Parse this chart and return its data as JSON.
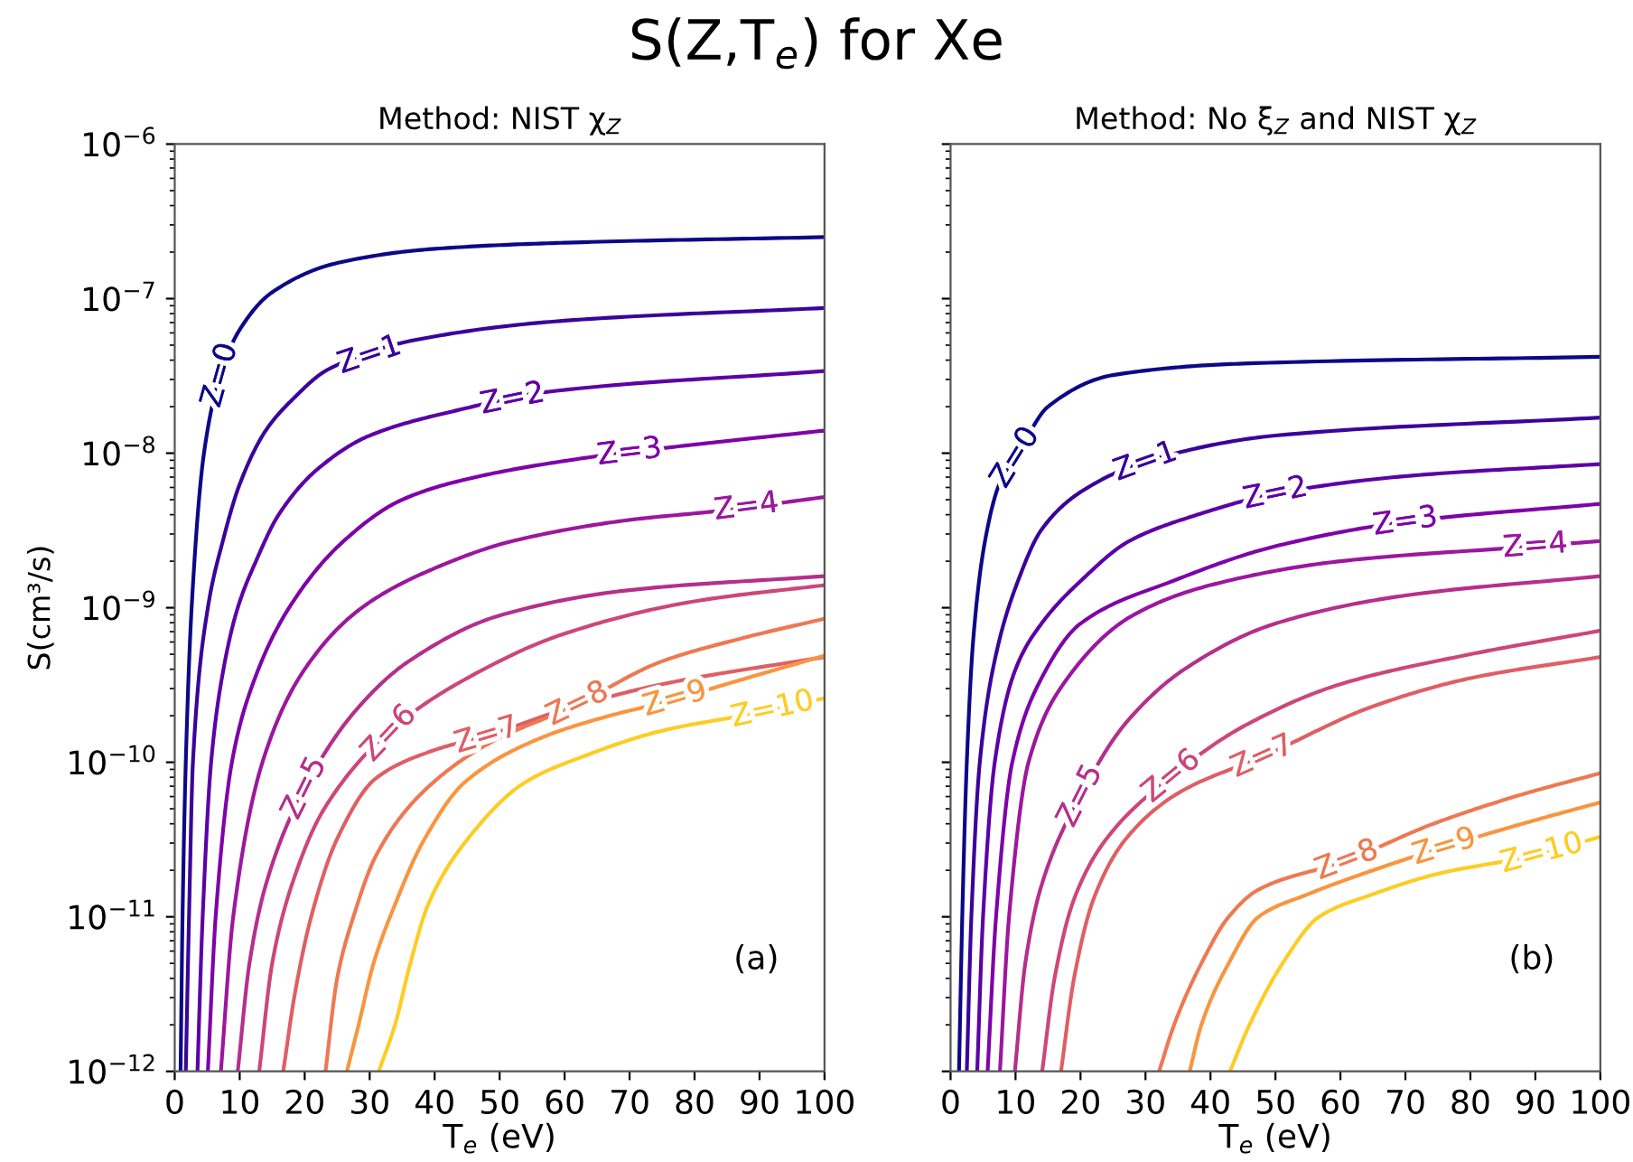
{
  "chart_data": [
    {
      "type": "line",
      "title": "S(Z,T$_{e}$) for Xe",
      "subtitle": "Method: NIST χ$_{Z}$",
      "xlabel": "T$_{e}$ (eV)",
      "ylabel": "S(cm³/s)",
      "annotations": [
        "(a)"
      ],
      "log": "y",
      "grid": false,
      "legend": false,
      "line_style": "solid",
      "marker": "none",
      "xlim": [
        0,
        100
      ],
      "xticks": [
        0,
        10,
        20,
        30,
        40,
        50,
        60,
        70,
        80,
        90,
        100
      ],
      "ylim": [
        1e-12,
        1e-06
      ],
      "yticks": [
        {
          "value": 1e-12,
          "label": "10$^{−12}$"
        },
        {
          "value": 1e-11,
          "label": "10$^{−11}$"
        },
        {
          "value": 1e-10,
          "label": "10$^{−10}$"
        },
        {
          "value": 1e-09,
          "label": "10$^{−9}$"
        },
        {
          "value": 1e-08,
          "label": "10$^{−8}$"
        },
        {
          "value": 1e-07,
          "label": "10$^{−7}$"
        },
        {
          "value": 1e-06,
          "label": "10$^{−6}$"
        }
      ],
      "series": [
        {
          "name": "Z=0",
          "color": "#0d0887",
          "x": [
            0.9,
            1.2,
            1.7,
            2.6,
            4.5,
            7,
            10,
            15,
            25,
            40,
            60,
            100
          ],
          "values": [
            1e-12,
            1e-11,
            1e-10,
            1e-09,
            1e-08,
            3.2e-08,
            6.3e-08,
            1.1e-07,
            1.7e-07,
            2.1e-07,
            2.3e-07,
            2.5e-07
          ]
        },
        {
          "name": "Z=1",
          "color": "#3a049a",
          "x": [
            1.7,
            2.2,
            2.8,
            5.1,
            7.4,
            10,
            14,
            18,
            23.7,
            37,
            60,
            100
          ],
          "values": [
            1e-12,
            1e-11,
            1e-10,
            1e-09,
            2.7e-09,
            6.3e-09,
            1.4e-08,
            2.2e-08,
            3.5e-08,
            5.4e-08,
            7.2e-08,
            8.7e-08
          ]
        },
        {
          "name": "Z=2",
          "color": "#5c01a6",
          "x": [
            3.5,
            4.3,
            5.6,
            7.5,
            9.7,
            12.5,
            16,
            22,
            30,
            43.6,
            57.6,
            100
          ],
          "values": [
            1e-12,
            1e-11,
            1e-10,
            4e-10,
            1e-09,
            2e-09,
            4e-09,
            7.9e-09,
            1.3e-08,
            1.9e-08,
            2.5e-08,
            3.4e-08
          ]
        },
        {
          "name": "Z=3",
          "color": "#7e03a8",
          "x": [
            5.1,
            6.3,
            8.8,
            12,
            17.6,
            26,
            35,
            45,
            63,
            77,
            100
          ],
          "values": [
            1e-12,
            1e-11,
            1e-10,
            3.2e-10,
            1e-09,
            2.7e-09,
            5e-09,
            6.8e-09,
            9.3e-09,
            1.1e-08,
            1.4e-08
          ]
        },
        {
          "name": "Z=4",
          "color": "#9c179e",
          "x": [
            7.1,
            9,
            13.5,
            20,
            28.8,
            40,
            52,
            70,
            83,
            100
          ],
          "values": [
            1e-12,
            1e-11,
            1e-10,
            4e-10,
            1e-09,
            1.8e-09,
            2.7e-09,
            3.7e-09,
            4.2e-09,
            5.2e-09
          ]
        },
        {
          "name": "Z=5",
          "color": "#b52f8c",
          "x": [
            9.7,
            11.5,
            14,
            20,
            28,
            36,
            50,
            70,
            100
          ],
          "values": [
            1e-12,
            5e-12,
            1.6e-11,
            6.8e-11,
            2.2e-10,
            4.5e-10,
            8.9e-10,
            1.3e-09,
            1.6e-09
          ]
        },
        {
          "name": "Z=6",
          "color": "#cc4778",
          "x": [
            13,
            15,
            18,
            23,
            33.9,
            45,
            60,
            80,
            100
          ],
          "values": [
            1e-12,
            5e-12,
            1.6e-11,
            5e-11,
            1.7e-10,
            3.5e-10,
            6.8e-10,
            1.1e-09,
            1.4e-09
          ]
        },
        {
          "name": "Z=7",
          "color": "#de5f65",
          "x": [
            16.7,
            18.5,
            21,
            25,
            31,
            40,
            48.3,
            60,
            75,
            100
          ],
          "values": [
            1e-12,
            3.2e-12,
            1e-11,
            3.2e-11,
            7.9e-11,
            1.2e-10,
            1.5e-10,
            2.2e-10,
            3.2e-10,
            4.8e-10
          ]
        },
        {
          "name": "Z=8",
          "color": "#ed7953",
          "x": [
            23.2,
            25,
            27.5,
            31,
            38,
            48,
            61.3,
            75,
            87,
            100
          ],
          "values": [
            1e-12,
            4e-12,
            1e-11,
            2.5e-11,
            6.3e-11,
            1.3e-10,
            2.3e-10,
            4.5e-10,
            6.3e-10,
            8.5e-10
          ]
        },
        {
          "name": "Z=9",
          "color": "#f89540",
          "x": [
            26.5,
            28.3,
            30.6,
            33.9,
            38.1,
            44.6,
            55.7,
            65,
            76.1,
            88,
            100
          ],
          "values": [
            1e-12,
            2e-12,
            5e-12,
            1.2e-11,
            3e-11,
            7.4e-11,
            1.4e-10,
            1.9e-10,
            2.5e-10,
            3.5e-10,
            4.9e-10
          ]
        },
        {
          "name": "Z=10",
          "color": "#fccd25",
          "x": [
            31.4,
            33.9,
            36.2,
            39,
            44.6,
            53.9,
            63.1,
            75,
            90,
            100
          ],
          "values": [
            1e-12,
            2e-12,
            4.9e-12,
            1.2e-11,
            3e-11,
            7.4e-11,
            1.1e-10,
            1.6e-10,
            2.1e-10,
            2.6e-10
          ]
        }
      ]
    },
    {
      "type": "line",
      "subtitle": "Method: No ξ$_{Z}$ and NIST χ$_{Z}$",
      "xlabel": "T$_{e}$ (eV)",
      "annotations": [
        "(b)"
      ],
      "log": "y",
      "grid": false,
      "legend": false,
      "line_style": "solid",
      "marker": "none",
      "tick_labels": "x",
      "xlim": [
        0,
        100
      ],
      "xticks": [
        0,
        10,
        20,
        30,
        40,
        50,
        60,
        70,
        80,
        90,
        100
      ],
      "ylim": [
        1e-12,
        1e-06
      ],
      "yticks": [
        {
          "value": 1e-12,
          "label": null
        },
        {
          "value": 1e-11,
          "label": null
        },
        {
          "value": 1e-10,
          "label": null
        },
        {
          "value": 1e-09,
          "label": null
        },
        {
          "value": 1e-08,
          "label": null
        },
        {
          "value": 1e-07,
          "label": null
        },
        {
          "value": 1e-06,
          "label": null
        }
      ],
      "series": [
        {
          "name": "Z=0",
          "color": "#0d0887",
          "x": [
            1.3,
            1.8,
            2.5,
            3.5,
            5.3,
            7.5,
            10.4,
            15,
            25,
            45,
            100
          ],
          "values": [
            1e-12,
            1e-11,
            1e-10,
            6.3e-10,
            2.7e-09,
            6.3e-09,
            1e-08,
            2e-08,
            3.2e-08,
            3.8e-08,
            4.2e-08
          ]
        },
        {
          "name": "Z=1",
          "color": "#3a049a",
          "x": [
            2.5,
            3.2,
            4.5,
            7,
            10.4,
            14,
            20,
            30.3,
            50,
            100
          ],
          "values": [
            1e-12,
            1e-11,
            1e-10,
            5e-10,
            1.5e-09,
            3.2e-09,
            5.6e-09,
            8.9e-09,
            1.3e-08,
            1.7e-08
          ]
        },
        {
          "name": "Z=2",
          "color": "#5c01a6",
          "x": [
            4.1,
            5,
            6.8,
            10,
            14,
            20.1,
            27.5,
            38,
            50.2,
            70,
            100
          ],
          "values": [
            1e-12,
            1e-11,
            1e-10,
            4e-10,
            7.9e-10,
            1.5e-09,
            2.7e-09,
            4e-09,
            5.5e-09,
            7.1e-09,
            8.5e-09
          ]
        },
        {
          "name": "Z=3",
          "color": "#7e03a8",
          "x": [
            5.7,
            7,
            9.5,
            14,
            20,
            34.4,
            50,
            70.1,
            100
          ],
          "values": [
            1e-12,
            1e-11,
            1e-10,
            3.5e-10,
            7.9e-10,
            1.5e-09,
            2.5e-09,
            3.6e-09,
            4.7e-09
          ]
        },
        {
          "name": "Z=4",
          "color": "#9c179e",
          "x": [
            7.6,
            9,
            12,
            18,
            28,
            40,
            60,
            90,
            100
          ],
          "values": [
            1e-12,
            1e-11,
            1e-10,
            3.5e-10,
            8.9e-10,
            1.4e-09,
            2e-09,
            2.5e-09,
            2.7e-09
          ]
        },
        {
          "name": "Z=5",
          "color": "#b52f8c",
          "x": [
            9.9,
            11.5,
            14,
            20.1,
            27,
            36,
            50,
            70,
            100
          ],
          "values": [
            1e-12,
            5e-12,
            1.6e-11,
            6.2e-11,
            1.8e-10,
            4e-10,
            7.9e-10,
            1.2e-09,
            1.6e-09
          ]
        },
        {
          "name": "Z=6",
          "color": "#cc4778",
          "x": [
            14.1,
            16,
            19,
            24,
            34,
            45,
            60,
            80,
            100
          ],
          "values": [
            1e-12,
            4e-12,
            1.3e-11,
            3.2e-11,
            8.1e-11,
            1.7e-10,
            3.2e-10,
            5e-10,
            7.1e-10
          ]
        },
        {
          "name": "Z=7",
          "color": "#de5f65",
          "x": [
            17,
            19,
            22,
            27,
            35,
            48.3,
            65,
            80,
            100
          ],
          "values": [
            1e-12,
            4e-12,
            1.3e-11,
            3.2e-11,
            6.3e-11,
            1.1e-10,
            2.3e-10,
            3.5e-10,
            4.8e-10
          ]
        },
        {
          "name": "Z=8",
          "color": "#ed7953",
          "x": [
            32.1,
            34.4,
            38.6,
            42.8,
            47.4,
            60.8,
            74.3,
            88,
            100
          ],
          "values": [
            1e-12,
            2e-12,
            5e-12,
            1e-11,
            1.5e-11,
            2.3e-11,
            4e-11,
            6.2e-11,
            8.5e-11
          ]
        },
        {
          "name": "Z=9",
          "color": "#f89540",
          "x": [
            36.8,
            38.6,
            42.8,
            47.4,
            55,
            65,
            75.6,
            88,
            100
          ],
          "values": [
            1e-12,
            2e-12,
            5e-12,
            1e-11,
            1.4e-11,
            2e-11,
            2.8e-11,
            4e-11,
            5.5e-11
          ]
        },
        {
          "name": "Z=10",
          "color": "#fccd25",
          "x": [
            43,
            46,
            51.1,
            56.7,
            65,
            75,
            90,
            100
          ],
          "values": [
            1e-12,
            2e-12,
            5e-12,
            1e-11,
            1.4e-11,
            1.9e-11,
            2.5e-11,
            3.3e-11
          ]
        }
      ]
    }
  ]
}
